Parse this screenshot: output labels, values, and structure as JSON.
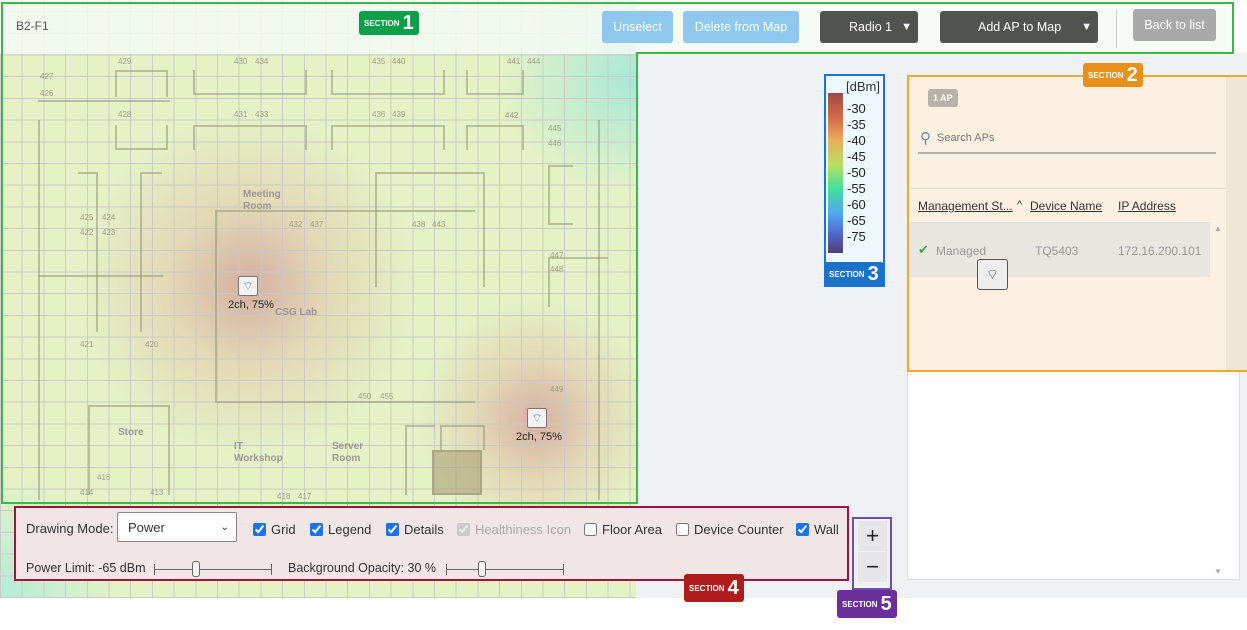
{
  "floor": "B2-F1",
  "toolbar": {
    "unselect": "Unselect",
    "delete": "Delete from Map",
    "radio": "Radio 1",
    "add_ap": "Add AP to Map",
    "back": "Back to list"
  },
  "map": {
    "rooms": [
      "427",
      "426",
      "429",
      "428",
      "430",
      "434",
      "431",
      "433",
      "435",
      "440",
      "436",
      "439",
      "441",
      "444",
      "442",
      "445",
      "446",
      "425",
      "424",
      "422",
      "423",
      "432",
      "437",
      "438",
      "443",
      "447",
      "448",
      "421",
      "420",
      "450",
      "455",
      "449",
      "416",
      "414",
      "413",
      "418",
      "417"
    ],
    "room_names": [
      "Meeting Room",
      "CSG Lab",
      "Store",
      "IT Workshop",
      "Server Room"
    ],
    "aps": [
      {
        "label": "2ch, 75%"
      },
      {
        "label": "2ch, 75%"
      }
    ]
  },
  "legend": {
    "unit": "[dBm]",
    "ticks": [
      "-30",
      "-35",
      "-40",
      "-45",
      "-50",
      "-55",
      "-60",
      "-65",
      "-75"
    ]
  },
  "ap_list": {
    "count_badge": "1 AP",
    "search_placeholder": "Search APs",
    "columns": [
      "Management St...",
      "Device Name",
      "IP Address"
    ],
    "rows": [
      {
        "status": "Managed",
        "device": "TQ5403",
        "ip": "172.16.200.101"
      }
    ]
  },
  "controls": {
    "drawing_mode_label": "Drawing Mode:",
    "drawing_mode": "Power",
    "checkboxes": [
      {
        "label": "Grid",
        "checked": true
      },
      {
        "label": "Legend",
        "checked": true
      },
      {
        "label": "Details",
        "checked": true
      },
      {
        "label": "Healthiness Icon",
        "checked": true,
        "disabled": true
      },
      {
        "label": "Floor Area",
        "checked": false
      },
      {
        "label": "Device Counter",
        "checked": false
      },
      {
        "label": "Wall",
        "checked": true
      }
    ],
    "power_limit": "Power Limit: -65 dBm",
    "power_limit_value": -65,
    "bg_opacity": "Background Opacity: 30 %",
    "bg_opacity_value": 30
  },
  "zoom": {
    "in": "+",
    "out": "−"
  },
  "sections": [
    {
      "s": "SECTION",
      "n": "1",
      "color": "#0aa04a"
    },
    {
      "s": "SECTION",
      "n": "2",
      "color": "#e8901a"
    },
    {
      "s": "SECTION",
      "n": "3",
      "color": "#1a73c8"
    },
    {
      "s": "SECTION",
      "n": "4",
      "color": "#b01c1c"
    },
    {
      "s": "SECTION",
      "n": "5",
      "color": "#6a2f9a"
    }
  ]
}
